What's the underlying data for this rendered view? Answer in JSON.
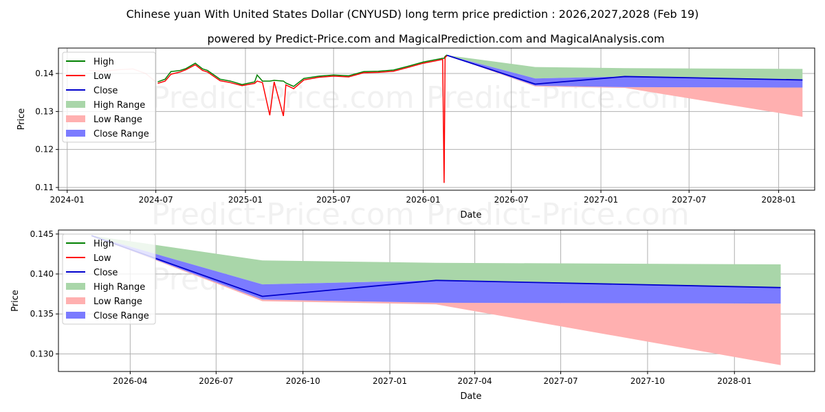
{
  "chart_data": {
    "type": "line",
    "title": "Chinese yuan With United States Dollar (CNYUSD) long term price prediction : 2026,2027,2028 (Feb 19)",
    "subtitle": "powered by Predict-Price.com and MagicalPrediction.com and MagicalAnalysis.com",
    "watermark": "Predict-Price.com",
    "xlabel": "Date",
    "ylabel": "Price",
    "legend": {
      "placement": "upper-left",
      "entries": [
        "High",
        "Low",
        "Close",
        "High Range",
        "Low Range",
        "Close Range"
      ]
    },
    "colors": {
      "high": "#008000",
      "low": "#ff0000",
      "close": "#0000cc",
      "high_range": "#a9d6a9",
      "low_range": "#ffb0b0",
      "close_range": "#7b7bff"
    },
    "history": {
      "dates": [
        "2024-07-05",
        "2024-07-20",
        "2024-08-01",
        "2024-08-20",
        "2024-09-01",
        "2024-09-20",
        "2024-10-05",
        "2024-10-15",
        "2024-11-10",
        "2024-12-01",
        "2024-12-25",
        "2025-01-20",
        "2025-01-25",
        "2025-02-05",
        "2025-02-20",
        "2025-03-01",
        "2025-03-20",
        "2025-03-25",
        "2025-04-10",
        "2025-05-01",
        "2025-06-01",
        "2025-07-01",
        "2025-08-01",
        "2025-09-01",
        "2025-10-01",
        "2025-11-01",
        "2025-12-01",
        "2026-01-01",
        "2026-02-10",
        "2026-02-13",
        "2026-02-15",
        "2026-02-19"
      ],
      "high": [
        0.1378,
        0.1385,
        0.1405,
        0.1408,
        0.1413,
        0.1427,
        0.1412,
        0.1408,
        0.1385,
        0.138,
        0.1371,
        0.1378,
        0.1396,
        0.138,
        0.138,
        0.1382,
        0.138,
        0.1375,
        0.1366,
        0.1387,
        0.1393,
        0.1396,
        0.1394,
        0.1405,
        0.1406,
        0.1409,
        0.1419,
        0.143,
        0.144,
        0.144,
        0.1445,
        0.1449
      ],
      "low": [
        0.1374,
        0.138,
        0.1398,
        0.1404,
        0.141,
        0.1423,
        0.1408,
        0.1404,
        0.1381,
        0.1376,
        0.1368,
        0.1374,
        0.138,
        0.1376,
        0.129,
        0.1378,
        0.1288,
        0.137,
        0.136,
        0.1383,
        0.139,
        0.1393,
        0.1391,
        0.1402,
        0.1403,
        0.1406,
        0.1416,
        0.1427,
        0.1437,
        0.1112,
        0.1442,
        0.1447
      ]
    },
    "faded_history": {
      "dates": [
        "2024-02-15",
        "2024-03-15",
        "2024-04-15",
        "2024-05-15",
        "2024-06-10",
        "2024-07-01"
      ],
      "values": [
        0.1408,
        0.1406,
        0.141,
        0.1412,
        0.14,
        0.1378
      ]
    },
    "forecast": {
      "dates": [
        "2026-02-19",
        "2026-08-19",
        "2027-02-19",
        "2028-02-19"
      ],
      "close": [
        0.1448,
        0.1372,
        0.1392,
        0.1383
      ],
      "high_range": [
        [
          0.1448,
          0.1448
        ],
        [
          0.1387,
          0.1417
        ],
        [
          0.1392,
          0.1414
        ],
        [
          0.1383,
          0.1412
        ]
      ],
      "close_range": [
        [
          0.1448,
          0.1448
        ],
        [
          0.1368,
          0.1387
        ],
        [
          0.1364,
          0.1392
        ],
        [
          0.1363,
          0.1383
        ]
      ],
      "low_range": [
        [
          0.1448,
          0.1448
        ],
        [
          0.1366,
          0.1368
        ],
        [
          0.1362,
          0.1364
        ],
        [
          0.1286,
          0.1363
        ]
      ]
    },
    "axes": [
      {
        "xlim": [
          "2023-12-14",
          "2028-03-15"
        ],
        "ylim": [
          0.10928,
          0.14669
        ],
        "xticks": [
          "2024-01",
          "2024-07",
          "2025-01",
          "2025-07",
          "2026-01",
          "2026-07",
          "2027-01",
          "2027-07",
          "2028-01"
        ],
        "yticks": [
          "0.11",
          "0.12",
          "0.13",
          "0.14"
        ],
        "show_history": true
      },
      {
        "xlim": [
          "2026-01-15",
          "2028-03-26"
        ],
        "ylim": [
          0.1278,
          0.1455
        ],
        "xticks": [
          "2026-04",
          "2026-07",
          "2026-10",
          "2027-01",
          "2027-04",
          "2027-07",
          "2027-10",
          "2028-01"
        ],
        "yticks": [
          "0.130",
          "0.135",
          "0.140",
          "0.145"
        ],
        "show_history": false
      }
    ]
  }
}
